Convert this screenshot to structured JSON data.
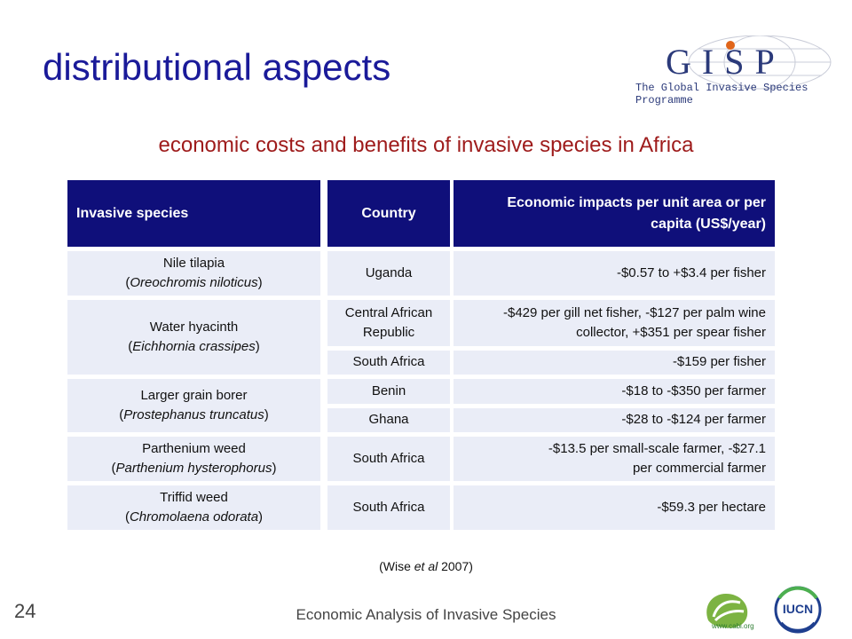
{
  "slide": {
    "title": "distributional aspects",
    "subtitle": "economic costs and benefits of invasive species in Africa",
    "page_number": "24",
    "footer": "Economic Analysis of Invasive Species"
  },
  "logos": {
    "gisp_word": "GISP",
    "gisp_tagline": "The Global Invasive Species Programme",
    "cabi": "www.cabi.org",
    "iucn": "IUCN"
  },
  "table": {
    "headers": {
      "species": "Invasive species",
      "country": "Country",
      "impact": "Economic impacts per unit area or per capita (US$/year)"
    },
    "groups": [
      {
        "common": "Nile tilapia",
        "scientific_open": "(",
        "scientific": "Oreochromis niloticus",
        "scientific_close": ")",
        "rows": [
          {
            "country": "Uganda",
            "impact": "-$0.57 to +$3.4 per fisher"
          }
        ]
      },
      {
        "common": "Water hyacinth",
        "scientific_open": "(",
        "scientific": "Eichhornia crassipes",
        "scientific_close": ")",
        "rows": [
          {
            "country": "Central African Republic",
            "impact": "-$429 per gill net fisher, -$127 per palm wine collector, +$351 per spear fisher"
          },
          {
            "country": "South Africa",
            "impact": "-$159 per fisher"
          }
        ]
      },
      {
        "common": "Larger grain borer",
        "scientific_open": "(",
        "scientific": "Prostephanus truncatus",
        "scientific_close": ")",
        "rows": [
          {
            "country": "Benin",
            "impact": "-$18 to -$350 per farmer"
          },
          {
            "country": "Ghana",
            "impact": "-$28 to -$124 per farmer"
          }
        ]
      },
      {
        "common": "Parthenium weed",
        "scientific_open": "(",
        "scientific": "Parthenium hysterophorus",
        "scientific_close": ")",
        "rows": [
          {
            "country": "South Africa",
            "impact": "-$13.5 per small-scale farmer, -$27.1 per commercial farmer"
          }
        ]
      },
      {
        "common": "Triffid weed",
        "scientific_open": "(",
        "scientific": "Chromolaena odorata",
        "scientific_close": ")",
        "rows": [
          {
            "country": "South Africa",
            "impact": "-$59.3 per hectare"
          }
        ]
      }
    ]
  },
  "citation": {
    "open": "(Wise ",
    "et_al": "et al",
    "close": " 2007)"
  }
}
